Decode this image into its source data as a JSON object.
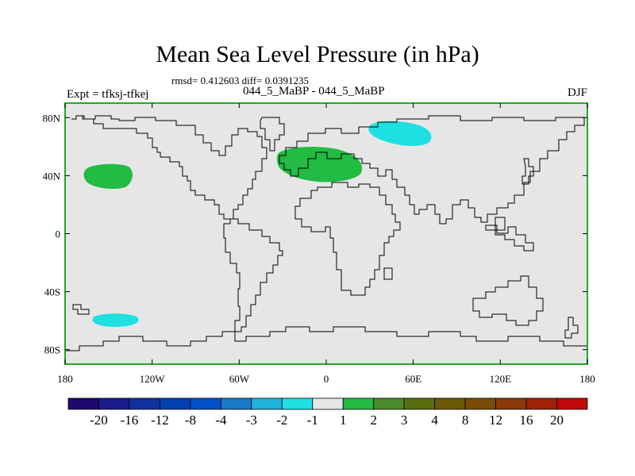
{
  "title": "Mean Sea Level Pressure (in hPa)",
  "stats_text": "rmsd= 0.412603 diff= 0.0391235",
  "experiment_label": "Expt = tfksj-tfkej",
  "subtitle": "044_5_MaBP - 044_5_MaBP",
  "season": "DJF",
  "lat_ticks": [
    {
      "label": "80N",
      "lat": 80
    },
    {
      "label": "40N",
      "lat": 40
    },
    {
      "label": "0",
      "lat": 0
    },
    {
      "label": "40S",
      "lat": -40
    },
    {
      "label": "80S",
      "lat": -80
    }
  ],
  "lon_ticks": [
    {
      "label": "180",
      "lon": -180
    },
    {
      "label": "120W",
      "lon": -120
    },
    {
      "label": "60W",
      "lon": -60
    },
    {
      "label": "0",
      "lon": 0
    },
    {
      "label": "60E",
      "lon": 60
    },
    {
      "label": "120E",
      "lon": 120
    },
    {
      "label": "180",
      "lon": 180
    }
  ],
  "colorbar": {
    "colors": [
      "#1e0a6e",
      "#1a1a8c",
      "#1030a0",
      "#0040b0",
      "#0050c8",
      "#1a78c8",
      "#1eb4dc",
      "#1ee0e0",
      "#e6e6e6",
      "#22bb44",
      "#4a8a28",
      "#5a6e10",
      "#6a5a08",
      "#7a4a08",
      "#8c3808",
      "#a02008",
      "#c00808"
    ],
    "labels": [
      "-20",
      "-16",
      "-12",
      "-8",
      "-4",
      "-3",
      "-2",
      "-1",
      "1",
      "2",
      "3",
      "4",
      "8",
      "12",
      "16",
      "20"
    ]
  },
  "colors": {
    "background_field": "#e6e6e6",
    "frame": "#22aa22",
    "coast": "#000000"
  }
}
